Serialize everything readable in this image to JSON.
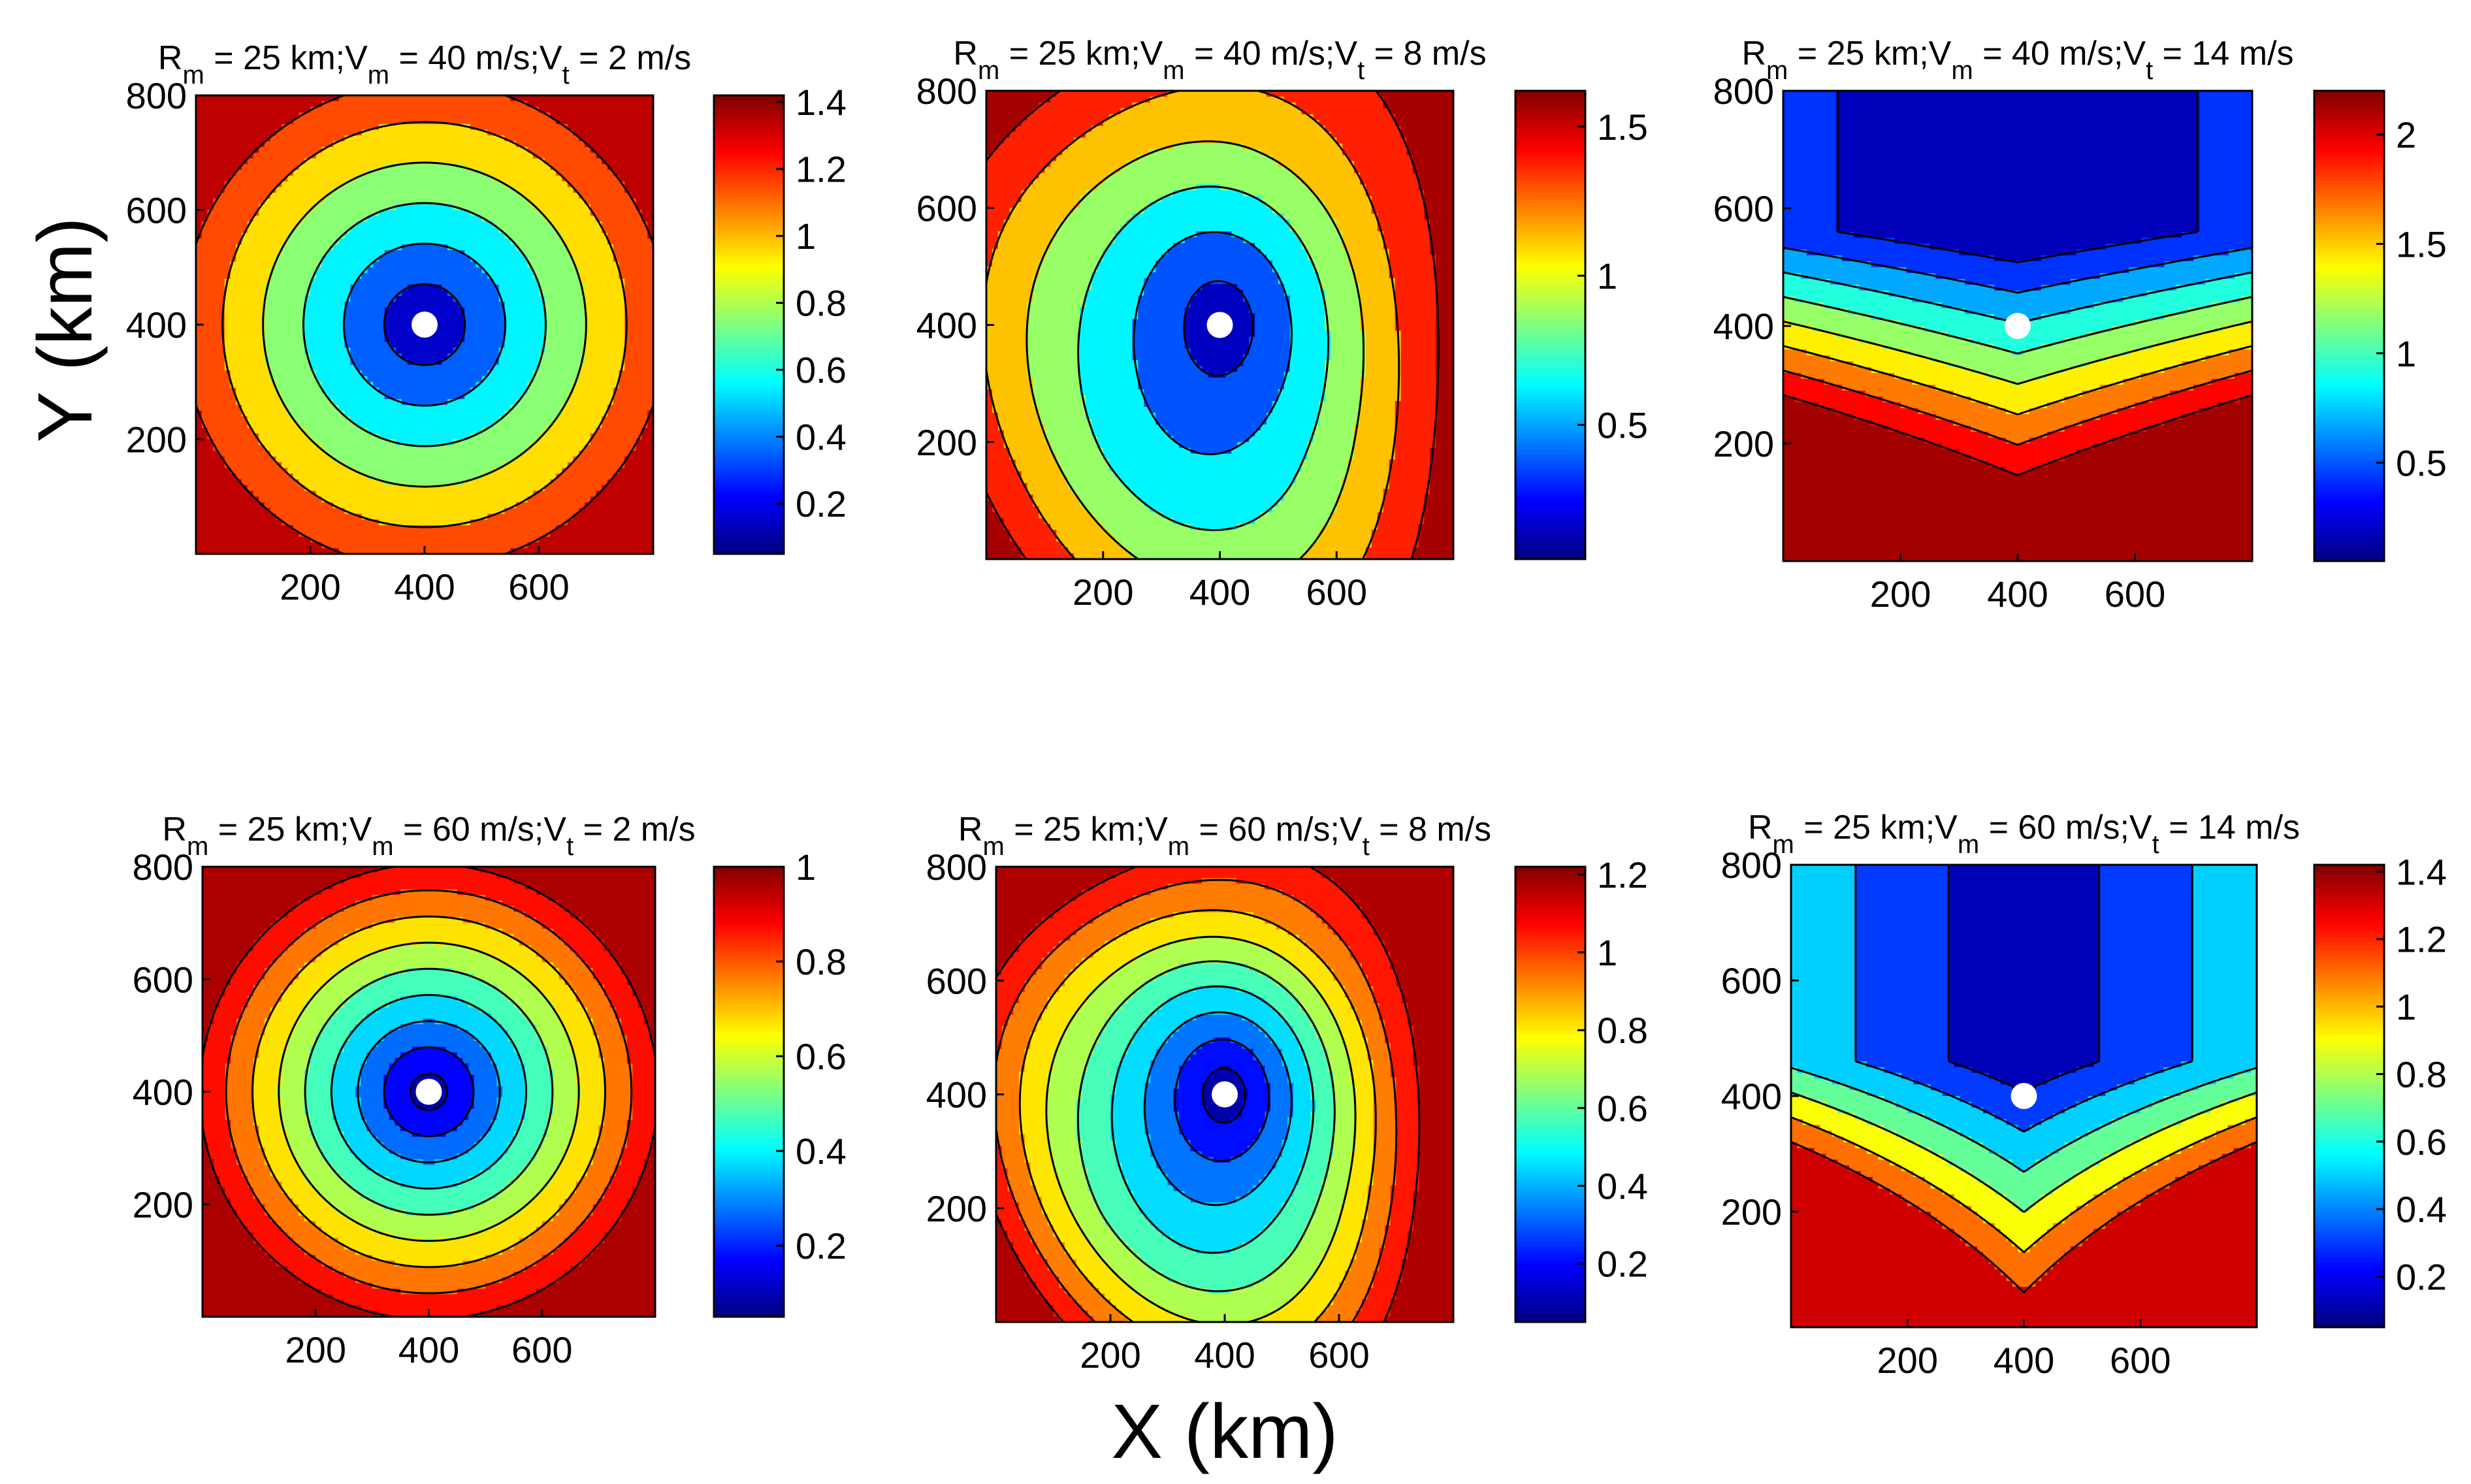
{
  "figure": {
    "xlabel": "X (km)",
    "ylabel": "Y (km)"
  },
  "chart_data": [
    {
      "type": "contour",
      "title": {
        "R": "R",
        "R_sub": "m",
        "R_val": " = 25 km;",
        "V": "V",
        "V_sub": "m",
        "V_val": " = 40 m/s;",
        "T": "V",
        "T_sub": "t",
        "T_val": " = 2 m/s"
      },
      "xlim": [
        0,
        800
      ],
      "ylim": [
        0,
        800
      ],
      "xticks": [
        200,
        400,
        600
      ],
      "yticks": [
        200,
        400,
        600,
        800
      ],
      "xtick_labels": [
        "200",
        "400",
        "600"
      ],
      "ytick_labels": [
        "200",
        "400",
        "600",
        "800"
      ],
      "colorbar": {
        "min": 0.05,
        "max": 1.42,
        "ticks": [
          0.2,
          0.4,
          0.6,
          0.8,
          1,
          1.2,
          1.4
        ],
        "tick_labels": [
          "0.2",
          "0.4",
          "0.6",
          "0.8",
          "1",
          "1.2",
          "1.4"
        ]
      },
      "field": {
        "cx": 400,
        "cy": 400,
        "base": 0.05,
        "ax": 0.00283,
        "ay": 0.00283,
        "bias": 0,
        "asym": 0
      },
      "levels": [
        0.25,
        0.45,
        0.65,
        0.85,
        1.05,
        1.25
      ],
      "storm_center": [
        400,
        400
      ]
    },
    {
      "type": "contour",
      "title": {
        "R": "R",
        "R_sub": "m",
        "R_val": " = 25 km;",
        "V": "V",
        "V_sub": "m",
        "V_val": " = 40 m/s;",
        "T": "V",
        "T_sub": "t",
        "T_val": " = 8 m/s"
      },
      "xlim": [
        0,
        800
      ],
      "ylim": [
        0,
        800
      ],
      "xticks": [
        200,
        400,
        600
      ],
      "yticks": [
        200,
        400,
        600,
        800
      ],
      "xtick_labels": [
        "200",
        "400",
        "600"
      ],
      "ytick_labels": [
        "200",
        "400",
        "600",
        "800"
      ],
      "colorbar": {
        "min": 0.05,
        "max": 1.62,
        "ticks": [
          0.5,
          1,
          1.5
        ],
        "tick_labels": [
          "0.5",
          "1",
          "1.5"
        ]
      },
      "field": {
        "cx": 400,
        "cy": 400,
        "base": 0.05,
        "ax": 0.0034,
        "ay": 0.0025,
        "bias": 0,
        "asym": 0.18
      },
      "levels": [
        0.25,
        0.5,
        0.75,
        1.0,
        1.25,
        1.5
      ],
      "storm_center": [
        400,
        400
      ]
    },
    {
      "type": "contour",
      "title": {
        "R": "R",
        "R_sub": "m",
        "R_val": " = 25 km;",
        "V": "V",
        "V_sub": "m",
        "V_val": " = 40 m/s;",
        "T": "V",
        "T_sub": "t",
        "T_val": " = 14 m/s"
      },
      "xlim": [
        0,
        800
      ],
      "ylim": [
        0,
        800
      ],
      "xticks": [
        200,
        400,
        600
      ],
      "yticks": [
        200,
        400,
        600,
        800
      ],
      "xtick_labels": [
        "200",
        "400",
        "600"
      ],
      "ytick_labels": [
        "200",
        "400",
        "600",
        "800"
      ],
      "colorbar": {
        "min": 0.05,
        "max": 2.2,
        "ticks": [
          0.5,
          1,
          1.5,
          2
        ],
        "tick_labels": [
          "0.5",
          "1",
          "1.5",
          "2"
        ]
      },
      "field": {
        "cx": 400,
        "cy": 560,
        "base": 0.05,
        "ax": 0.0018,
        "ay": 0.0042,
        "bias": 1,
        "asym": 0.1
      },
      "levels": [
        0.3,
        0.55,
        0.8,
        1.05,
        1.3,
        1.55,
        1.8,
        2.05
      ],
      "storm_center": [
        400,
        400
      ]
    },
    {
      "type": "contour",
      "title": {
        "R": "R",
        "R_sub": "m",
        "R_val": " = 25 km;",
        "V": "V",
        "V_sub": "m",
        "V_val": " = 60 m/s;",
        "T": "V",
        "T_sub": "t",
        "T_val": " = 2 m/s"
      },
      "xlim": [
        0,
        800
      ],
      "ylim": [
        0,
        800
      ],
      "xticks": [
        200,
        400,
        600
      ],
      "yticks": [
        200,
        400,
        600,
        800
      ],
      "xtick_labels": [
        "200",
        "400",
        "600"
      ],
      "ytick_labels": [
        "200",
        "400",
        "600",
        "800"
      ],
      "colorbar": {
        "min": 0.05,
        "max": 1.0,
        "ticks": [
          0.2,
          0.4,
          0.6,
          0.8,
          1
        ],
        "tick_labels": [
          "0.2",
          "0.4",
          "0.6",
          "0.8",
          "1"
        ]
      },
      "field": {
        "cx": 400,
        "cy": 400,
        "base": 0.05,
        "ax": 0.00215,
        "ay": 0.00215,
        "bias": 0,
        "asym": 0
      },
      "levels": [
        0.12,
        0.22,
        0.32,
        0.42,
        0.52,
        0.62,
        0.72,
        0.82,
        0.92
      ],
      "storm_center": [
        400,
        400
      ]
    },
    {
      "type": "contour",
      "title": {
        "R": "R",
        "R_sub": "m",
        "R_val": " = 25 km;",
        "V": "V",
        "V_sub": "m",
        "V_val": " = 60 m/s;",
        "T": "V",
        "T_sub": "t",
        "T_val": " = 8 m/s"
      },
      "xlim": [
        0,
        800
      ],
      "ylim": [
        0,
        800
      ],
      "xticks": [
        200,
        400,
        600
      ],
      "yticks": [
        200,
        400,
        600,
        800
      ],
      "xtick_labels": [
        "200",
        "400",
        "600"
      ],
      "ytick_labels": [
        "200",
        "400",
        "600",
        "800"
      ],
      "colorbar": {
        "min": 0.05,
        "max": 1.22,
        "ticks": [
          0.2,
          0.4,
          0.6,
          0.8,
          1,
          1.2
        ],
        "tick_labels": [
          "0.2",
          "0.4",
          "0.6",
          "0.8",
          "1",
          "1.2"
        ]
      },
      "field": {
        "cx": 400,
        "cy": 400,
        "base": 0.05,
        "ax": 0.0027,
        "ay": 0.0021,
        "bias": 0,
        "asym": 0.15
      },
      "levels": [
        0.15,
        0.27,
        0.39,
        0.51,
        0.63,
        0.75,
        0.87,
        0.99,
        1.11
      ],
      "storm_center": [
        400,
        400
      ]
    },
    {
      "type": "contour",
      "title": {
        "R": "R",
        "R_sub": "m",
        "R_val": " = 25 km;",
        "V": "V",
        "V_sub": "m",
        "V_val": " = 60 m/s;",
        "T": "V",
        "T_sub": "t",
        "T_val": " = 14 m/s"
      },
      "xlim": [
        0,
        800
      ],
      "ylim": [
        0,
        800
      ],
      "xticks": [
        200,
        400,
        600
      ],
      "yticks": [
        200,
        400,
        600,
        800
      ],
      "xtick_labels": [
        "200",
        "400",
        "600"
      ],
      "ytick_labels": [
        "200",
        "400",
        "600",
        "800"
      ],
      "colorbar": {
        "min": 0.05,
        "max": 1.42,
        "ticks": [
          0.2,
          0.4,
          0.6,
          0.8,
          1,
          1.2,
          1.4
        ],
        "tick_labels": [
          "0.2",
          "0.4",
          "0.6",
          "0.8",
          "1",
          "1.2",
          "1.4"
        ]
      },
      "field": {
        "cx": 400,
        "cy": 460,
        "base": 0.05,
        "ax": 0.0028,
        "ay": 0.0025,
        "bias": 0.5,
        "asym": 0.1
      },
      "levels": [
        0.2,
        0.4,
        0.6,
        0.8,
        1.0,
        1.2
      ],
      "storm_center": [
        400,
        400
      ]
    }
  ]
}
